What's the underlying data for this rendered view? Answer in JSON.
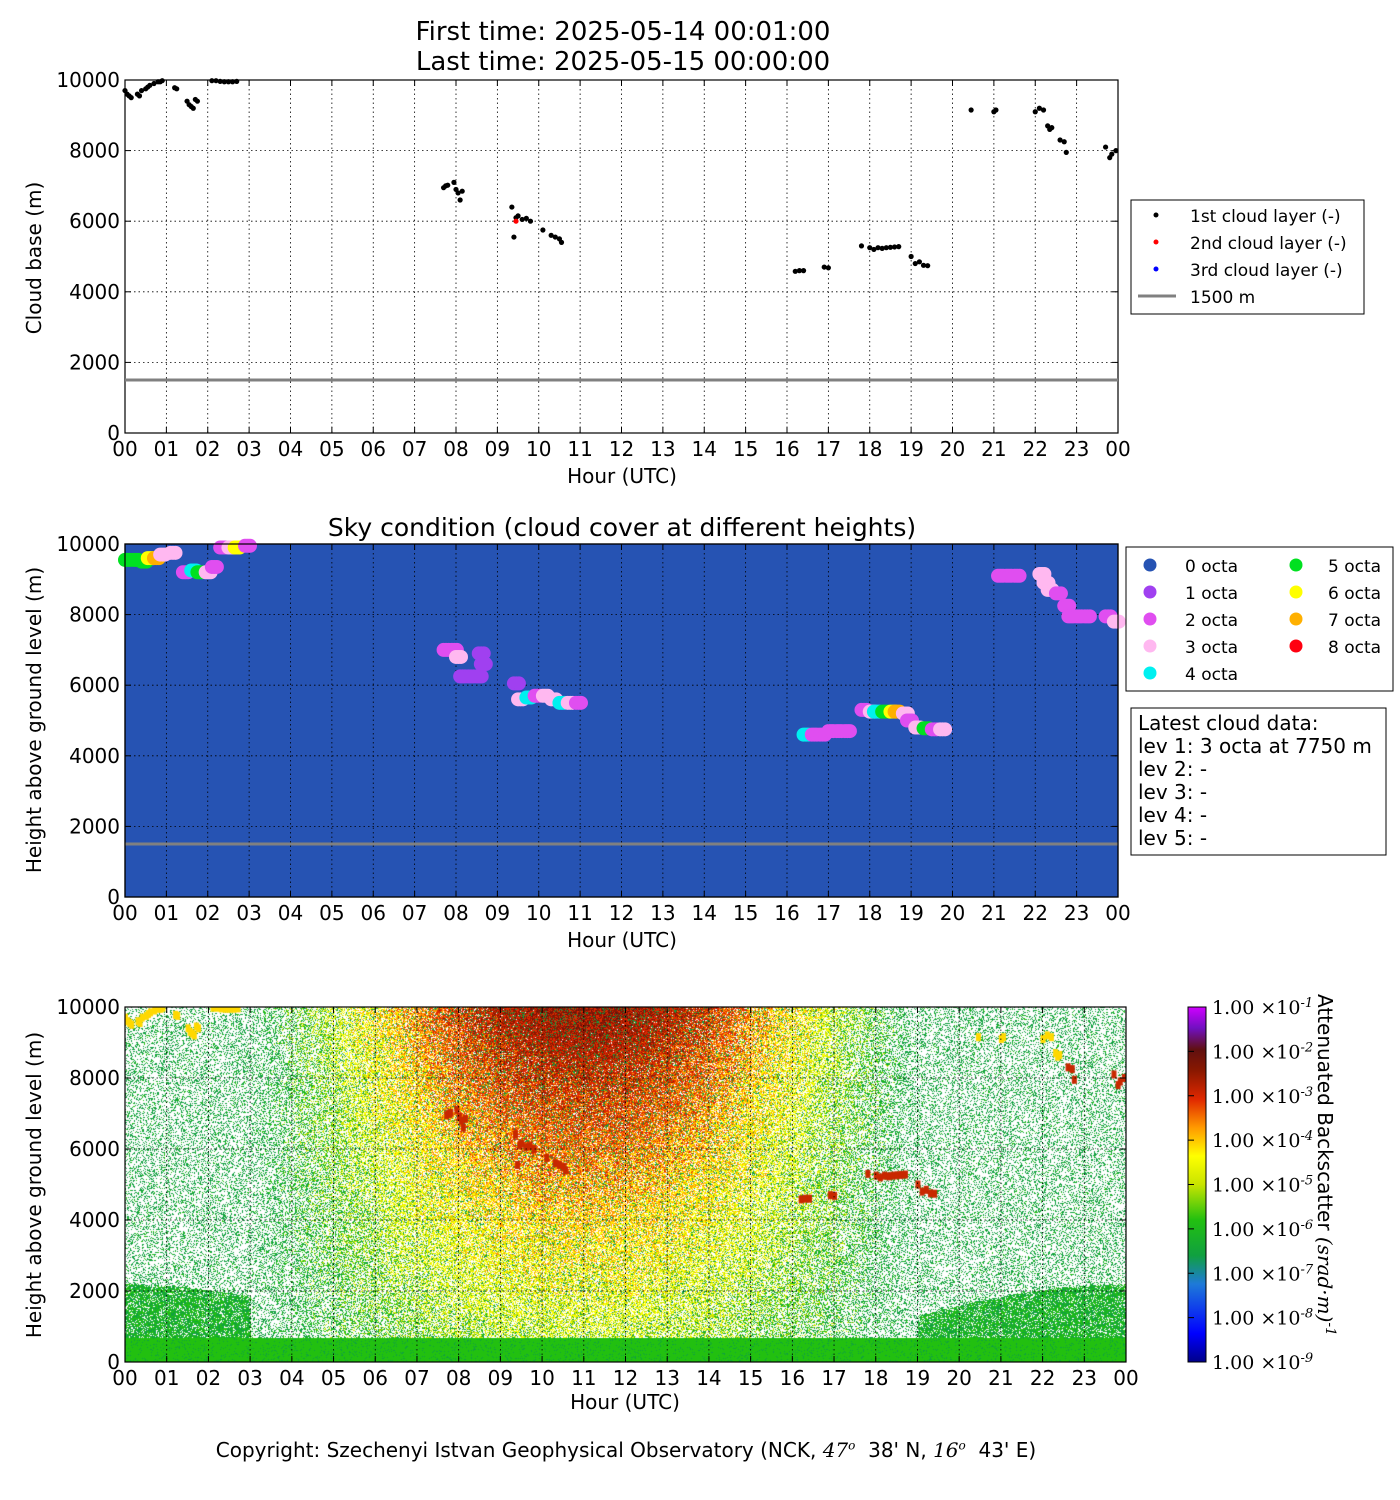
{
  "header": {
    "first_time": "First time: 2025-05-14 00:01:00",
    "last_time": "Last time: 2025-05-15 00:00:00"
  },
  "footer": {
    "copyright_prefix": "Copyright: Szechenyi Istvan Geophysical Observatory (NCK, ",
    "lat_deg": "47",
    "lat_min": "38' N, ",
    "lon_deg": "16",
    "lon_min": "43' E)"
  },
  "hour_ticks": [
    "00",
    "01",
    "02",
    "03",
    "04",
    "05",
    "06",
    "07",
    "08",
    "09",
    "10",
    "11",
    "12",
    "13",
    "14",
    "15",
    "16",
    "17",
    "18",
    "19",
    "20",
    "21",
    "22",
    "23",
    "00"
  ],
  "colors": {
    "sky_bg": "#2653b3",
    "ref_line": "#808080",
    "layer1": "#000000",
    "layer2": "#ff0000",
    "layer3": "#0000ff",
    "octa": [
      "#2653b3",
      "#a040f0",
      "#e04ef0",
      "#ffb8f0",
      "#00f0f0",
      "#00e020",
      "#ffff00",
      "#ffb000",
      "#ff0010"
    ]
  },
  "chart_data": [
    {
      "id": "cloud-base",
      "type": "scatter",
      "title": "",
      "xlabel": "Hour (UTC)",
      "ylabel": "Cloud base (m)",
      "xlim": [
        0,
        24
      ],
      "ylim": [
        0,
        10000
      ],
      "yticks": [
        "0",
        "2000",
        "4000",
        "6000",
        "8000",
        "10000"
      ],
      "grid": true,
      "legend_position": "right",
      "legend": [
        "1st cloud layer (-)",
        "2nd cloud layer (-)",
        "3rd cloud layer (-)",
        "1500 m"
      ],
      "reference_line": 1500,
      "series": [
        {
          "name": "1st cloud layer (-)",
          "points": [
            [
              0.0,
              9700
            ],
            [
              0.05,
              9600
            ],
            [
              0.1,
              9550
            ],
            [
              0.15,
              9500
            ],
            [
              0.3,
              9600
            ],
            [
              0.35,
              9550
            ],
            [
              0.4,
              9700
            ],
            [
              0.5,
              9750
            ],
            [
              0.55,
              9800
            ],
            [
              0.6,
              9850
            ],
            [
              0.7,
              9900
            ],
            [
              0.8,
              9950
            ],
            [
              0.85,
              9950
            ],
            [
              0.9,
              9980
            ],
            [
              1.2,
              9780
            ],
            [
              1.25,
              9750
            ],
            [
              1.5,
              9400
            ],
            [
              1.55,
              9300
            ],
            [
              1.6,
              9250
            ],
            [
              1.65,
              9200
            ],
            [
              1.7,
              9450
            ],
            [
              1.75,
              9400
            ],
            [
              2.1,
              9980
            ],
            [
              2.2,
              9980
            ],
            [
              2.3,
              9960
            ],
            [
              2.4,
              9950
            ],
            [
              2.5,
              9950
            ],
            [
              2.6,
              9950
            ],
            [
              2.7,
              9960
            ],
            [
              7.7,
              6950
            ],
            [
              7.75,
              7000
            ],
            [
              7.8,
              7020
            ],
            [
              7.95,
              7100
            ],
            [
              8.0,
              6900
            ],
            [
              8.05,
              6800
            ],
            [
              8.1,
              6600
            ],
            [
              8.15,
              6850
            ],
            [
              9.35,
              6400
            ],
            [
              9.4,
              5550
            ],
            [
              9.45,
              6100
            ],
            [
              9.5,
              6150
            ],
            [
              9.6,
              6050
            ],
            [
              9.7,
              6080
            ],
            [
              9.8,
              6000
            ],
            [
              10.1,
              5750
            ],
            [
              10.3,
              5600
            ],
            [
              10.4,
              5550
            ],
            [
              10.5,
              5500
            ],
            [
              10.55,
              5400
            ],
            [
              16.2,
              4580
            ],
            [
              16.3,
              4600
            ],
            [
              16.4,
              4600
            ],
            [
              16.9,
              4700
            ],
            [
              17.0,
              4680
            ],
            [
              17.8,
              5300
            ],
            [
              18.0,
              5250
            ],
            [
              18.1,
              5200
            ],
            [
              18.2,
              5250
            ],
            [
              18.3,
              5230
            ],
            [
              18.4,
              5250
            ],
            [
              18.5,
              5260
            ],
            [
              18.6,
              5270
            ],
            [
              18.7,
              5280
            ],
            [
              19.0,
              5000
            ],
            [
              19.1,
              4800
            ],
            [
              19.2,
              4850
            ],
            [
              19.3,
              4750
            ],
            [
              19.4,
              4740
            ],
            [
              20.45,
              9150
            ],
            [
              21.0,
              9100
            ],
            [
              21.05,
              9150
            ],
            [
              22.0,
              9100
            ],
            [
              22.1,
              9200
            ],
            [
              22.2,
              9150
            ],
            [
              22.3,
              8700
            ],
            [
              22.35,
              8600
            ],
            [
              22.4,
              8650
            ],
            [
              22.6,
              8300
            ],
            [
              22.7,
              8250
            ],
            [
              22.75,
              7950
            ],
            [
              23.7,
              8100
            ],
            [
              23.8,
              7800
            ],
            [
              23.85,
              7900
            ],
            [
              23.95,
              8000
            ]
          ]
        },
        {
          "name": "2nd cloud layer (-)",
          "points": [
            [
              9.45,
              6000
            ]
          ]
        },
        {
          "name": "3rd cloud layer (-)",
          "points": []
        }
      ]
    },
    {
      "id": "sky-condition",
      "type": "scatter",
      "title": "Sky condition (cloud cover at different heights)",
      "xlabel": "Hour (UTC)",
      "ylabel": "Height above ground level (m)",
      "xlim": [
        0,
        24
      ],
      "ylim": [
        0,
        10000
      ],
      "yticks": [
        "0",
        "2000",
        "4000",
        "6000",
        "8000",
        "10000"
      ],
      "grid": true,
      "legend_position": "right",
      "legend": [
        "0 octa",
        "1 octa",
        "2 octa",
        "3 octa",
        "4 octa",
        "5 octa",
        "6 octa",
        "7 octa",
        "8 octa"
      ],
      "reference_line": 1500,
      "points": [
        [
          0.0,
          9550,
          5
        ],
        [
          0.2,
          9550,
          5
        ],
        [
          0.4,
          9500,
          5
        ],
        [
          0.55,
          9600,
          6
        ],
        [
          0.7,
          9600,
          7
        ],
        [
          0.85,
          9700,
          3
        ],
        [
          1.1,
          9750,
          3
        ],
        [
          1.4,
          9200,
          2
        ],
        [
          1.6,
          9250,
          4
        ],
        [
          1.75,
          9200,
          5
        ],
        [
          1.95,
          9200,
          3
        ],
        [
          2.1,
          9350,
          2
        ],
        [
          2.3,
          9900,
          2
        ],
        [
          2.5,
          9900,
          3
        ],
        [
          2.65,
          9900,
          6
        ],
        [
          2.9,
          9950,
          2
        ],
        [
          7.7,
          7000,
          2
        ],
        [
          7.9,
          7000,
          2
        ],
        [
          8.0,
          6800,
          3
        ],
        [
          8.1,
          6250,
          1
        ],
        [
          8.3,
          6250,
          1
        ],
        [
          8.5,
          6250,
          1
        ],
        [
          8.55,
          6900,
          1
        ],
        [
          8.6,
          6600,
          1
        ],
        [
          9.4,
          6050,
          1
        ],
        [
          9.5,
          5600,
          3
        ],
        [
          9.7,
          5650,
          4
        ],
        [
          9.9,
          5700,
          2
        ],
        [
          10.1,
          5700,
          3
        ],
        [
          10.3,
          5600,
          3
        ],
        [
          10.5,
          5500,
          4
        ],
        [
          10.7,
          5500,
          3
        ],
        [
          10.9,
          5500,
          2
        ],
        [
          16.4,
          4600,
          4
        ],
        [
          16.6,
          4600,
          2
        ],
        [
          16.8,
          4600,
          2
        ],
        [
          17.0,
          4700,
          2
        ],
        [
          17.2,
          4700,
          2
        ],
        [
          17.4,
          4700,
          2
        ],
        [
          17.8,
          5300,
          2
        ],
        [
          18.0,
          5250,
          3
        ],
        [
          18.1,
          5250,
          4
        ],
        [
          18.3,
          5250,
          5
        ],
        [
          18.5,
          5250,
          6
        ],
        [
          18.6,
          5250,
          7
        ],
        [
          18.8,
          5200,
          3
        ],
        [
          18.9,
          5000,
          2
        ],
        [
          19.1,
          4800,
          3
        ],
        [
          19.3,
          4780,
          5
        ],
        [
          19.5,
          4750,
          2
        ],
        [
          19.7,
          4750,
          3
        ],
        [
          21.1,
          9100,
          2
        ],
        [
          21.3,
          9100,
          2
        ],
        [
          21.5,
          9100,
          2
        ],
        [
          22.1,
          9150,
          3
        ],
        [
          22.2,
          8900,
          3
        ],
        [
          22.3,
          8700,
          3
        ],
        [
          22.5,
          8600,
          2
        ],
        [
          22.7,
          8250,
          2
        ],
        [
          22.8,
          7950,
          2
        ],
        [
          23.0,
          7950,
          2
        ],
        [
          23.2,
          7950,
          2
        ],
        [
          23.7,
          7950,
          2
        ],
        [
          23.9,
          7800,
          3
        ]
      ]
    },
    {
      "id": "backscatter",
      "type": "heatmap",
      "title": "",
      "xlabel": "Hour (UTC)",
      "ylabel": "Height above ground level (m)",
      "xlim": [
        0,
        24
      ],
      "ylim": [
        0,
        10000
      ],
      "yticks": [
        "0",
        "2000",
        "4000",
        "6000",
        "8000",
        "10000"
      ],
      "colorbar_label": "Attenuated Backscatter",
      "colorbar_unit_base": "srad",
      "colorbar_unit_exp": "-1",
      "colorbar_mantissa": "1.00",
      "colorbar_exponents": [
        "-9",
        "-8",
        "-7",
        "-6",
        "-5",
        "-4",
        "-3",
        "-2",
        "-1"
      ]
    }
  ],
  "sky_legend": {
    "col1": [
      "0 octa",
      "1 octa",
      "2 octa",
      "3 octa",
      "4 octa"
    ],
    "col2": [
      "5 octa",
      "6 octa",
      "7 octa",
      "8 octa"
    ]
  },
  "latest_cloud": {
    "title": "Latest cloud data:",
    "lines": [
      "lev 1: 3 octa at 7750 m",
      "lev 2: -",
      "lev 3: -",
      "lev 4: -",
      "lev 5: -"
    ]
  }
}
